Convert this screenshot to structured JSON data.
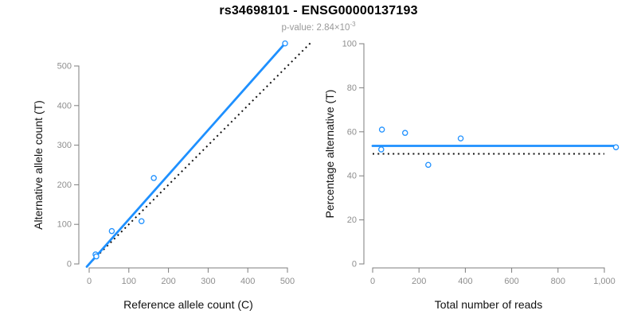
{
  "header": {
    "title": "rs34698101 - ENSG00000137193",
    "subtitle_main": "p-value: 2.84×10",
    "subtitle_exponent": "-3"
  },
  "colors": {
    "accent_blue": "#1e90ff",
    "dotted_black": "#111111",
    "axis_line": "#7d7d7d",
    "tick_label": "#8e8e8e",
    "axis_label": "#111111",
    "subtitle_text": "#999999"
  },
  "chart_data": [
    {
      "type": "scatter",
      "name": "allele-count-scatter",
      "xlabel": "Reference allele count (C)",
      "ylabel": "Alternative allele count (T)",
      "xlim": [
        0,
        500
      ],
      "ylim": [
        0,
        500
      ],
      "xticks": [
        0,
        100,
        200,
        300,
        400,
        500
      ],
      "xtick_labels": [
        "0",
        "100",
        "200",
        "300",
        "400",
        "500"
      ],
      "yticks": [
        0,
        100,
        200,
        300,
        400,
        500
      ],
      "ytick_labels": [
        "0",
        "100",
        "200",
        "300",
        "400",
        "500"
      ],
      "grid": false,
      "points": [
        [
          16,
          24
        ],
        [
          18,
          19
        ],
        [
          57,
          83
        ],
        [
          132,
          108
        ],
        [
          163,
          217
        ],
        [
          494,
          557
        ]
      ],
      "lines": [
        {
          "name": "identity-line",
          "style": "dotted",
          "color": "#111111",
          "from": [
            0,
            0
          ],
          "to": [
            558,
            558
          ]
        },
        {
          "name": "fit-line",
          "style": "solid",
          "color": "#1e90ff",
          "from": [
            -6,
            -7
          ],
          "to": [
            494,
            557
          ]
        }
      ]
    },
    {
      "type": "scatter",
      "name": "percentage-scatter",
      "xlabel": "Total number of reads",
      "ylabel": "Percentage alternative (T)",
      "xlim": [
        0,
        1000
      ],
      "ylim": [
        0,
        100
      ],
      "xticks": [
        0,
        200,
        400,
        600,
        800,
        1000
      ],
      "xtick_labels": [
        "0",
        "200",
        "400",
        "600",
        "800",
        "1,000"
      ],
      "yticks": [
        0,
        20,
        40,
        60,
        80,
        100
      ],
      "ytick_labels": [
        "0",
        "20",
        "40",
        "60",
        "80",
        "100"
      ],
      "grid": false,
      "points": [
        [
          40,
          61
        ],
        [
          140,
          59.5
        ],
        [
          380,
          57
        ],
        [
          37,
          52
        ],
        [
          240,
          45
        ],
        [
          1050,
          53
        ]
      ],
      "lines": [
        {
          "name": "null-line",
          "style": "dotted",
          "color": "#111111",
          "from": [
            0,
            50
          ],
          "to": [
            1000,
            50
          ]
        },
        {
          "name": "fit-line",
          "style": "solid",
          "color": "#1e90ff",
          "from": [
            0,
            53.6
          ],
          "to": [
            1052,
            53.6
          ]
        }
      ]
    }
  ]
}
